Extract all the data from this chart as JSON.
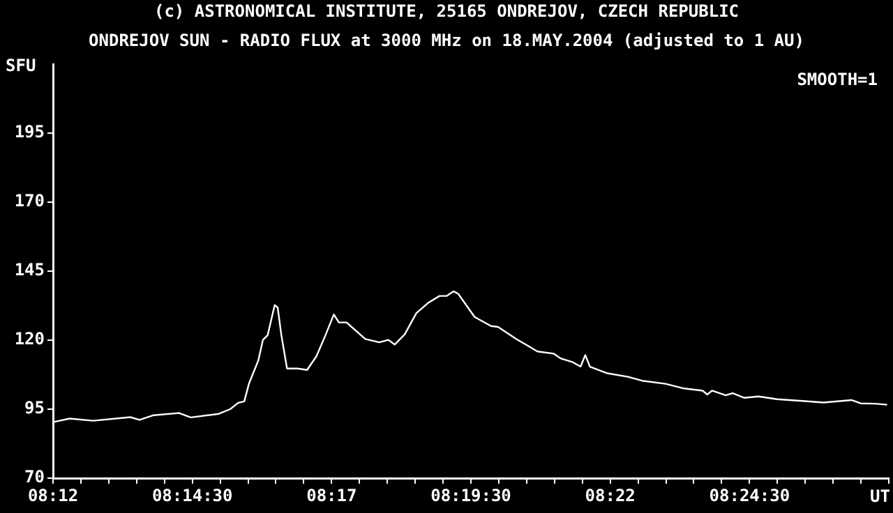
{
  "chart_data": {
    "type": "line",
    "title": "ONDREJOV SUN - RADIO FLUX at 3000 MHz on 18.MAY.2004 (adjusted to 1 AU)",
    "ylabel": "SFU",
    "xlabel": "UT",
    "annotations": [
      "(c) ASTRONOMICAL INSTITUTE, 25165 ONDREJOV, CZECH REPUBLIC",
      "SMOOTH=1"
    ],
    "xlim": [
      8.2,
      8.45
    ],
    "xticks": [
      {
        "value": 8.2,
        "label": "08:12"
      },
      {
        "value": 8.208333,
        "label": null
      },
      {
        "value": 8.216667,
        "label": null
      },
      {
        "value": 8.225,
        "label": null
      },
      {
        "value": 8.233333,
        "label": null
      },
      {
        "value": 8.241667,
        "label": "08:14:30"
      },
      {
        "value": 8.25,
        "label": null
      },
      {
        "value": 8.258333,
        "label": null
      },
      {
        "value": 8.266667,
        "label": null
      },
      {
        "value": 8.275,
        "label": null
      },
      {
        "value": 8.283333,
        "label": "08:17"
      },
      {
        "value": 8.291667,
        "label": null
      },
      {
        "value": 8.3,
        "label": null
      },
      {
        "value": 8.308333,
        "label": null
      },
      {
        "value": 8.316667,
        "label": null
      },
      {
        "value": 8.325,
        "label": "08:19:30"
      },
      {
        "value": 8.333333,
        "label": null
      },
      {
        "value": 8.341667,
        "label": null
      },
      {
        "value": 8.35,
        "label": null
      },
      {
        "value": 8.358333,
        "label": null
      },
      {
        "value": 8.366667,
        "label": "08:22"
      },
      {
        "value": 8.375,
        "label": null
      },
      {
        "value": 8.383333,
        "label": null
      },
      {
        "value": 8.391667,
        "label": null
      },
      {
        "value": 8.4,
        "label": null
      },
      {
        "value": 8.408333,
        "label": "08:24:30"
      },
      {
        "value": 8.416667,
        "label": null
      },
      {
        "value": 8.425,
        "label": null
      },
      {
        "value": 8.433333,
        "label": null
      },
      {
        "value": 8.441667,
        "label": null
      },
      {
        "value": 8.45,
        "label": null
      }
    ],
    "ylim": [
      70,
      220
    ],
    "yticks": [
      70,
      95,
      120,
      145,
      170,
      195
    ],
    "grid": false,
    "legend": false,
    "marker": "none",
    "line_style": "solid",
    "x": [
      8.2,
      8.205,
      8.212,
      8.2231,
      8.2259,
      8.2301,
      8.2377,
      8.2412,
      8.2496,
      8.253,
      8.2554,
      8.2572,
      8.2586,
      8.2614,
      8.2628,
      8.2642,
      8.2663,
      8.2672,
      8.2683,
      8.27,
      8.2732,
      8.276,
      8.2788,
      8.2815,
      8.284,
      8.2855,
      8.2878,
      8.2934,
      8.2976,
      8.3003,
      8.3022,
      8.3052,
      8.3087,
      8.3122,
      8.3156,
      8.3177,
      8.3198,
      8.3212,
      8.3261,
      8.331,
      8.3331,
      8.3386,
      8.3449,
      8.3498,
      8.3518,
      8.3553,
      8.3578,
      8.3592,
      8.3606,
      8.3658,
      8.372,
      8.3762,
      8.3832,
      8.3887,
      8.3943,
      8.3957,
      8.3971,
      8.4012,
      8.4033,
      8.4068,
      8.411,
      8.4166,
      8.4249,
      8.4305,
      8.4388,
      8.4416,
      8.4457,
      8.4495
    ],
    "series": [
      {
        "color": "#ffffff",
        "values": [
          90.3,
          91.6,
          90.8,
          92.1,
          91.1,
          92.8,
          93.6,
          92.0,
          93.3,
          95.0,
          97.3,
          97.8,
          104.2,
          112.6,
          120.1,
          121.8,
          132.7,
          131.8,
          121.8,
          109.7,
          109.7,
          109.2,
          114.2,
          121.8,
          129.3,
          126.4,
          126.4,
          120.4,
          119.2,
          120.1,
          118.4,
          122.1,
          129.8,
          133.5,
          136.0,
          136.0,
          137.7,
          136.8,
          128.4,
          125.1,
          124.8,
          120.4,
          115.9,
          115.1,
          113.4,
          112.1,
          110.4,
          114.6,
          110.4,
          108.0,
          106.7,
          105.3,
          104.2,
          102.5,
          101.7,
          100.3,
          101.7,
          100.0,
          100.8,
          99.1,
          99.6,
          98.6,
          97.9,
          97.4,
          98.3,
          97.1,
          97.0,
          96.6
        ]
      }
    ]
  }
}
